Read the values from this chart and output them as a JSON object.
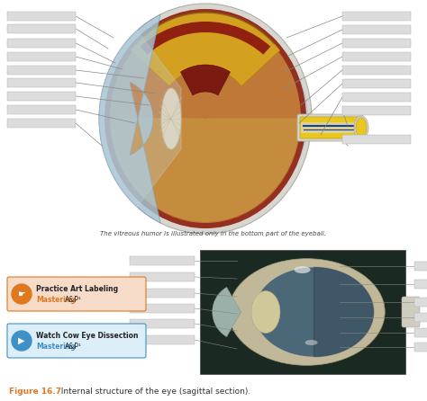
{
  "bg_color": "#ffffff",
  "fig_width": 4.74,
  "fig_height": 4.46,
  "dpi": 100,
  "note_text": "The vitreous humor is illustrated only in the bottom part of the eyeball.",
  "caption_fig": "Figure 16.7",
  "caption_rest": "  Internal structure of the eye (sagittal section).",
  "caption_color": "#e07820",
  "caption_normal_color": "#333333",
  "box1_color": "#f5dbc8",
  "box1_border": "#e07820",
  "box1_icon_color": "#e07820",
  "box1_line1": "Practice Art Labeling",
  "box1_line2_a": "Mastering",
  "box1_line2_b": "A&P¹",
  "box2_color": "#dceef8",
  "box2_border": "#4090c8",
  "box2_icon_color": "#4090c8",
  "box2_line1": "Watch Cow Eye Dissection",
  "box2_line2_a": "Mastering",
  "box2_line2_b": "A&P¹",
  "photo_bg": "#1a2a22",
  "photo_inner": "#4a6878",
  "photo_sclera": "#c0b898",
  "photo_lens": "#d0c898",
  "photo_cornea": "#9ab0a8"
}
